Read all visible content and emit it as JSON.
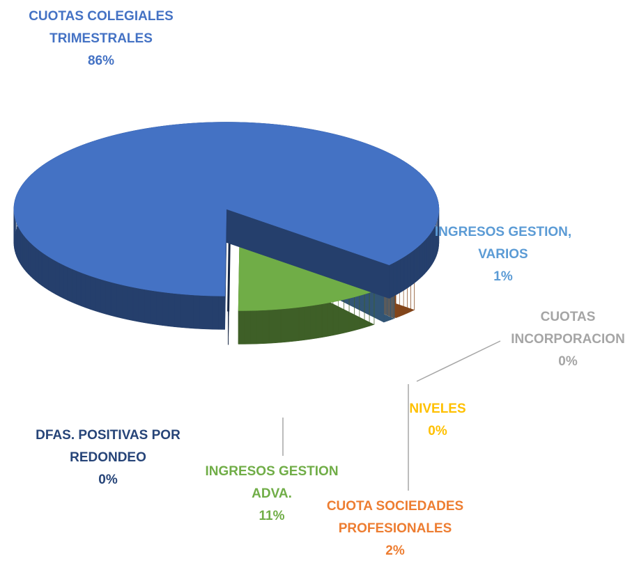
{
  "chart_data": {
    "type": "pie",
    "categories": [
      "CUOTA SOCIEDADES PROFESIONALES",
      "NIVELES",
      "CUOTAS INCORPORACION",
      "INGRESOS GESTION, VARIOS",
      "INGRESOS GESTION ADVA.",
      "DFAS. POSITIVAS POR REDONDEO",
      "CUOTAS COLEGIALES TRIMESTRALES"
    ],
    "values": [
      2,
      0,
      0,
      1,
      11,
      0,
      86
    ],
    "value_labels": [
      "2%",
      "0%",
      "0%",
      "1%",
      "11%",
      "0%",
      "86%"
    ],
    "colors": [
      "#ed7d31",
      "#ffc000",
      "#a5a5a5",
      "#5b9bd5",
      "#70ad47",
      "#264478",
      "#4472c4"
    ]
  }
}
